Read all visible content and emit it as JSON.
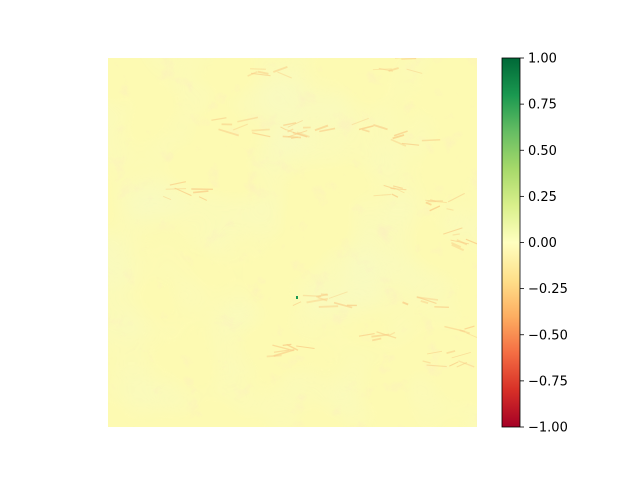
{
  "chart_data": {
    "type": "heatmap",
    "title": "",
    "xlabel": "",
    "ylabel": "",
    "axes_visible": false,
    "colormap": "RdYlGn",
    "colorbar": {
      "vmin": -1.0,
      "vmax": 1.0,
      "ticks": [
        1.0,
        0.75,
        0.5,
        0.25,
        0.0,
        -0.25,
        -0.5,
        -0.75,
        -1.0
      ],
      "tick_labels": [
        "1.00",
        "0.75",
        "0.50",
        "0.25",
        "0.00",
        "−0.25",
        "−0.50",
        "−0.75",
        "−1.00"
      ]
    },
    "value_summary": {
      "approx_min": -0.35,
      "approx_max": 0.2,
      "dominant_range": [
        -0.1,
        0.1
      ],
      "notable_max": 1.0
    },
    "colors": {
      "background": "#ffffff",
      "map_base": "#fdfab2",
      "map_green_tint": "#eef6b0",
      "map_orange_streak": "#f9cf8a",
      "map_peak": "#1a9850"
    }
  }
}
